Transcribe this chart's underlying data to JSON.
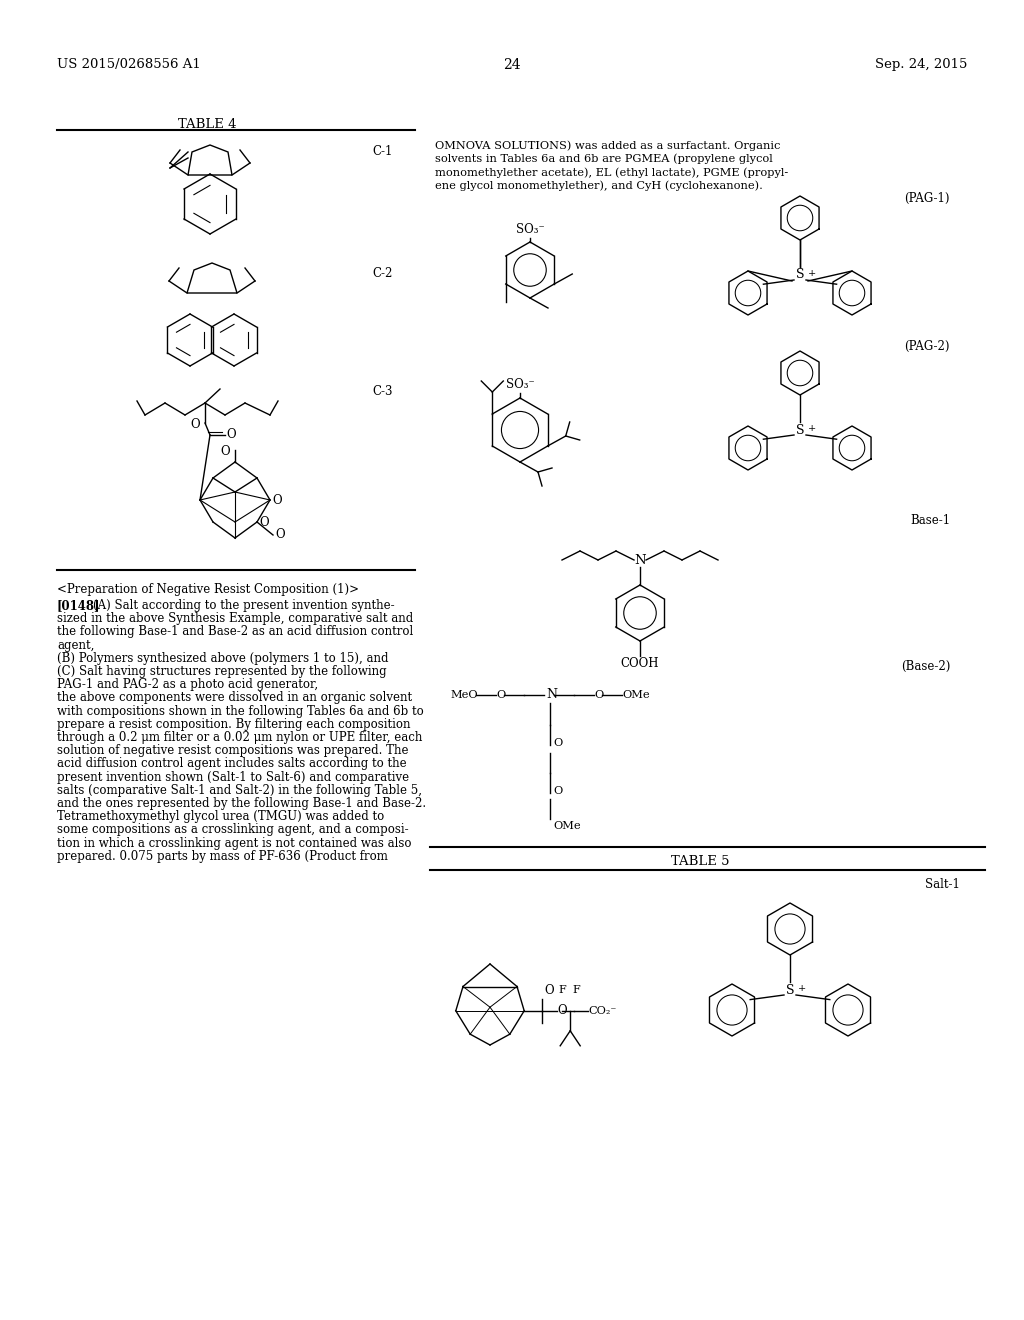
{
  "page_number": "24",
  "header_left": "US 2015/0268556 A1",
  "header_right": "Sep. 24, 2015",
  "background_color": "#ffffff",
  "table4_title": "TABLE 4",
  "table5_title": "TABLE 5",
  "section_heading": "<Preparation of Negative Resist Composition (1)>",
  "right_top_lines": [
    "OMNOVA SOLUTIONS) was added as a surfactant. Organic",
    "solvents in Tables 6a and 6b are PGMEA (propylene glycol",
    "monomethylether acetate), EL (ethyl lactate), PGME (propyl-",
    "ene glycol monomethylether), and CyH (cyclohexanone)."
  ],
  "para_lines": [
    "[0148]",
    "(A) Salt according to the present invention synthe-",
    "sized in the above Synthesis Example, comparative salt and",
    "the following Base-1 and Base-2 as an acid diffusion control",
    "agent,",
    "(B) Polymers synthesized above (polymers 1 to 15), and",
    "(C) Salt having structures represented by the following",
    "PAG-1 and PAG-2 as a photo acid generator,",
    "the above components were dissolved in an organic solvent",
    "with compositions shown in the following Tables 6a and 6b to",
    "prepare a resist composition. By filtering each composition",
    "through a 0.2 μm filter or a 0.02 μm nylon or UPE filter, each",
    "solution of negative resist compositions was prepared. The",
    "acid diffusion control agent includes salts according to the",
    "present invention shown (Salt-1 to Salt-6) and comparative",
    "salts (comparative Salt-1 and Salt-2) in the following Table 5,",
    "and the ones represented by the following Base-1 and Base-2.",
    "Tetramethoxymethyl glycol urea (TMGU) was added to",
    "some compositions as a crosslinking agent, and a composi-",
    "tion in which a crosslinking agent is not contained was also",
    "prepared. 0.075 parts by mass of PF-636 (Product from"
  ],
  "lw": 1.0,
  "lw_inner": 0.8,
  "fs_label": 8.5,
  "fs_body": 8.0,
  "fs_chem": 8.0
}
